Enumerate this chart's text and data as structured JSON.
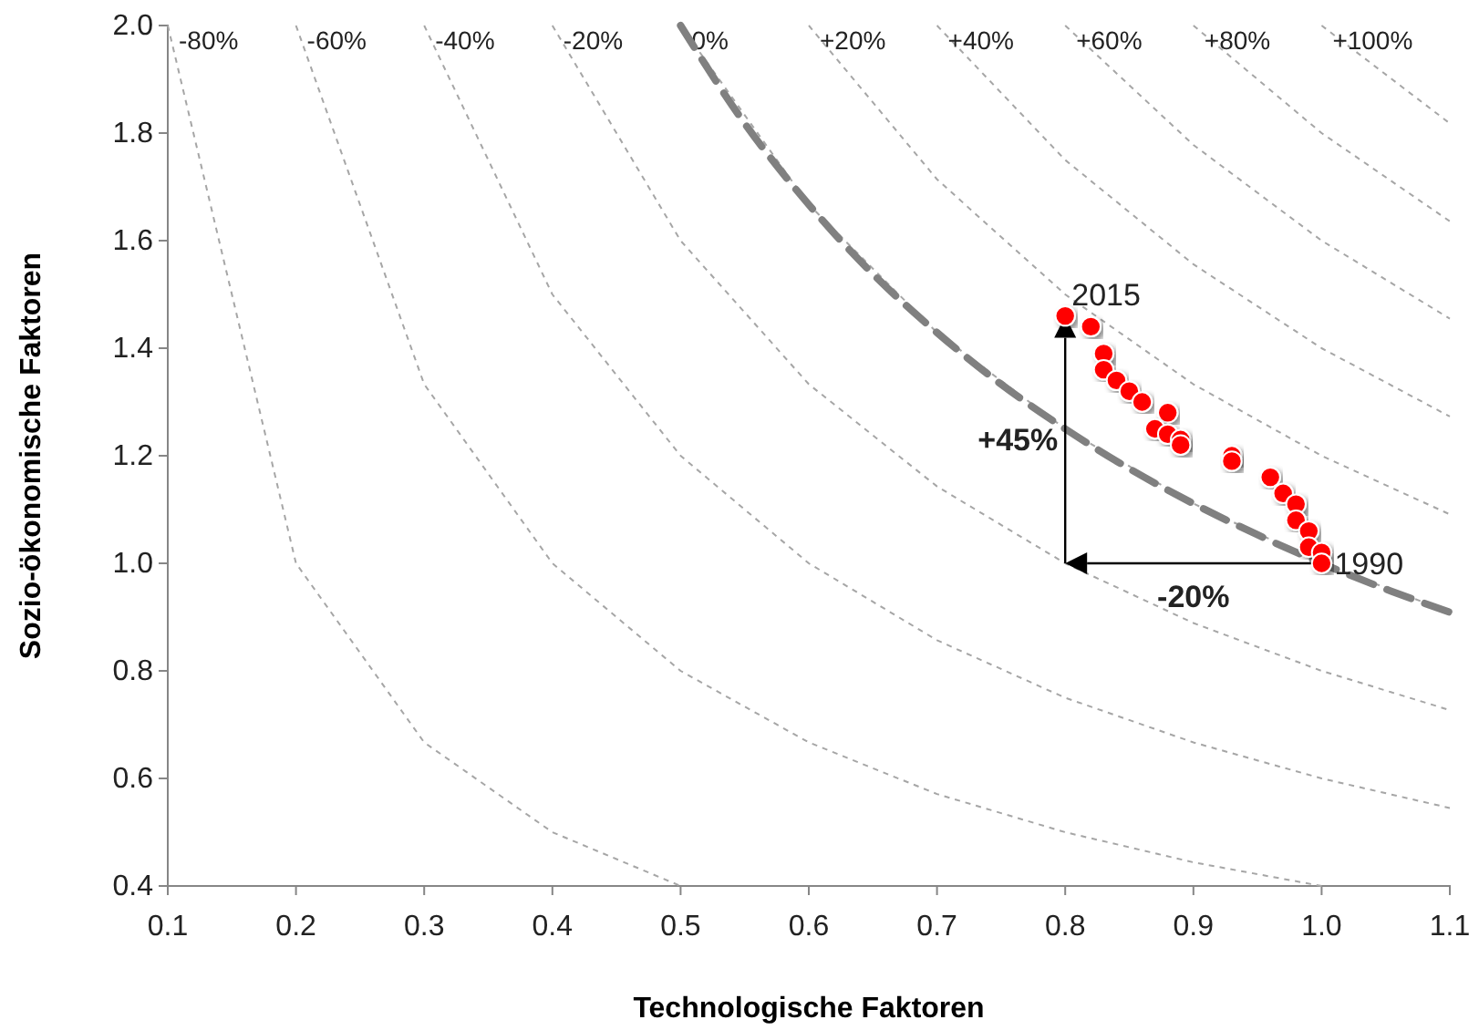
{
  "chart_data": {
    "type": "line",
    "xlabel": "Technologische Faktoren",
    "ylabel": "Sozio-ökonomische Faktoren",
    "xlim": [
      0.1,
      1.1
    ],
    "xticks": [
      {
        "value": 0.1,
        "label": "0.1"
      },
      {
        "value": 0.2,
        "label": "0.2"
      },
      {
        "value": 0.3,
        "label": "0.3"
      },
      {
        "value": 0.4,
        "label": "0.4"
      },
      {
        "value": 0.5,
        "label": "0.5"
      },
      {
        "value": 0.6,
        "label": "0.6"
      },
      {
        "value": 0.7,
        "label": "0.7"
      },
      {
        "value": 0.8,
        "label": "0.8"
      },
      {
        "value": 0.9,
        "label": "0.9"
      },
      {
        "value": 1.0,
        "label": "1.0"
      },
      {
        "value": 1.1,
        "label": "1.1"
      }
    ],
    "ylim": [
      0.4,
      2.0
    ],
    "yticks": [
      {
        "value": 0.4,
        "label": "0.4"
      },
      {
        "value": 0.6,
        "label": "0.6"
      },
      {
        "value": 0.8,
        "label": "0.8"
      },
      {
        "value": 1.0,
        "label": "1.0"
      },
      {
        "value": 1.2,
        "label": "1.2"
      },
      {
        "value": 1.4,
        "label": "1.4"
      },
      {
        "value": 1.6,
        "label": "1.6"
      },
      {
        "value": 1.8,
        "label": "1.8"
      },
      {
        "value": 2.0,
        "label": "2.0"
      }
    ],
    "grid": false,
    "series": [
      {
        "name": "-80%",
        "line_style": "dotted",
        "color": "#a6a6a6",
        "x": [
          0.1,
          0.2,
          0.3,
          0.4,
          0.5
        ],
        "values": [
          2,
          1,
          0.667,
          0.5,
          0.4
        ]
      },
      {
        "name": "-60%",
        "line_style": "dotted",
        "color": "#a6a6a6",
        "x": [
          0.2,
          0.3,
          0.4,
          0.5,
          0.6,
          0.7,
          0.8,
          0.9,
          1.0
        ],
        "values": [
          2,
          1.333,
          1,
          0.8,
          0.667,
          0.571,
          0.5,
          0.444,
          0.4
        ]
      },
      {
        "name": "-40%",
        "line_style": "dotted",
        "color": "#a6a6a6",
        "x": [
          0.3,
          0.4,
          0.5,
          0.6,
          0.7,
          0.8,
          0.9,
          1.0,
          1.1
        ],
        "values": [
          2,
          1.5,
          1.2,
          1,
          0.857,
          0.75,
          0.667,
          0.6,
          0.545
        ]
      },
      {
        "name": "-20%",
        "line_style": "dotted",
        "color": "#a6a6a6",
        "x": [
          0.4,
          0.5,
          0.6,
          0.7,
          0.8,
          0.9,
          1.0,
          1.1
        ],
        "values": [
          2,
          1.6,
          1.333,
          1.143,
          1,
          0.889,
          0.8,
          0.727
        ]
      },
      {
        "name": "0%",
        "line_style": "dotted",
        "color": "#a6a6a6",
        "x": [
          0.5,
          0.6,
          0.7,
          0.8,
          0.9,
          1.0,
          1.1
        ],
        "values": [
          2,
          1.667,
          1.429,
          1.25,
          1.111,
          1,
          0.909
        ]
      },
      {
        "name": "+20%",
        "type": "line",
        "line_style": "dotted",
        "color": "#a6a6a6",
        "x": [
          0.6,
          0.7,
          0.8,
          0.9,
          1.0,
          1.1
        ],
        "values": [
          2,
          1.714,
          1.5,
          1.333,
          1.2,
          1.091
        ]
      },
      {
        "name": "+40%",
        "type": "line",
        "line_style": "dotted",
        "color": "#a6a6a6",
        "x": [
          0.7,
          0.8,
          0.9,
          1.0,
          1.1
        ],
        "values": [
          2,
          1.75,
          1.556,
          1.4,
          1.273
        ]
      },
      {
        "name": "+60%",
        "type": "line",
        "line_style": "dotted",
        "color": "#a6a6a6",
        "x": [
          0.8,
          0.9,
          1.0,
          1.1
        ],
        "values": [
          2,
          1.778,
          1.6,
          1.455
        ]
      },
      {
        "name": "+80%",
        "type": "line",
        "line_style": "dotted",
        "color": "#a6a6a6",
        "x": [
          0.9,
          1.0,
          1.1
        ],
        "values": [
          2,
          1.8,
          1.636
        ]
      },
      {
        "name": "+100%",
        "type": "line",
        "line_style": "dotted",
        "color": "#a6a6a6",
        "x": [
          1.0,
          1.1
        ],
        "values": [
          2,
          1.818
        ]
      },
      {
        "type": "line",
        "line_style": "dashed",
        "color": "#808080",
        "x": [
          0.5,
          0.55,
          0.6,
          0.65,
          0.7,
          0.75,
          0.8,
          0.85,
          0.9,
          0.95,
          1.0,
          1.05,
          1.1
        ],
        "values": [
          2,
          1.818,
          1.667,
          1.538,
          1.429,
          1.333,
          1.25,
          1.176,
          1.111,
          1.053,
          1,
          0.952,
          0.909
        ]
      },
      {
        "type": "scatter",
        "marker": "circle",
        "color": "#ff0000",
        "x": [
          0.8,
          0.82,
          0.83,
          0.83,
          0.84,
          0.85,
          0.86,
          0.88,
          0.87,
          0.88,
          0.89,
          0.89,
          0.93,
          0.93,
          0.96,
          0.97,
          0.98,
          0.98,
          0.99,
          0.99,
          1.0,
          1.0
        ],
        "values": [
          1.46,
          1.44,
          1.39,
          1.36,
          1.34,
          1.32,
          1.3,
          1.28,
          1.25,
          1.24,
          1.23,
          1.22,
          1.2,
          1.19,
          1.16,
          1.13,
          1.11,
          1.08,
          1.06,
          1.03,
          1.02,
          1.0
        ]
      }
    ],
    "annotations": [
      {
        "text": "2015",
        "x": 0.805,
        "y": 1.48
      },
      {
        "text": "1990",
        "x": 1.01,
        "y": 0.98
      },
      "+45%",
      "-20%"
    ]
  }
}
